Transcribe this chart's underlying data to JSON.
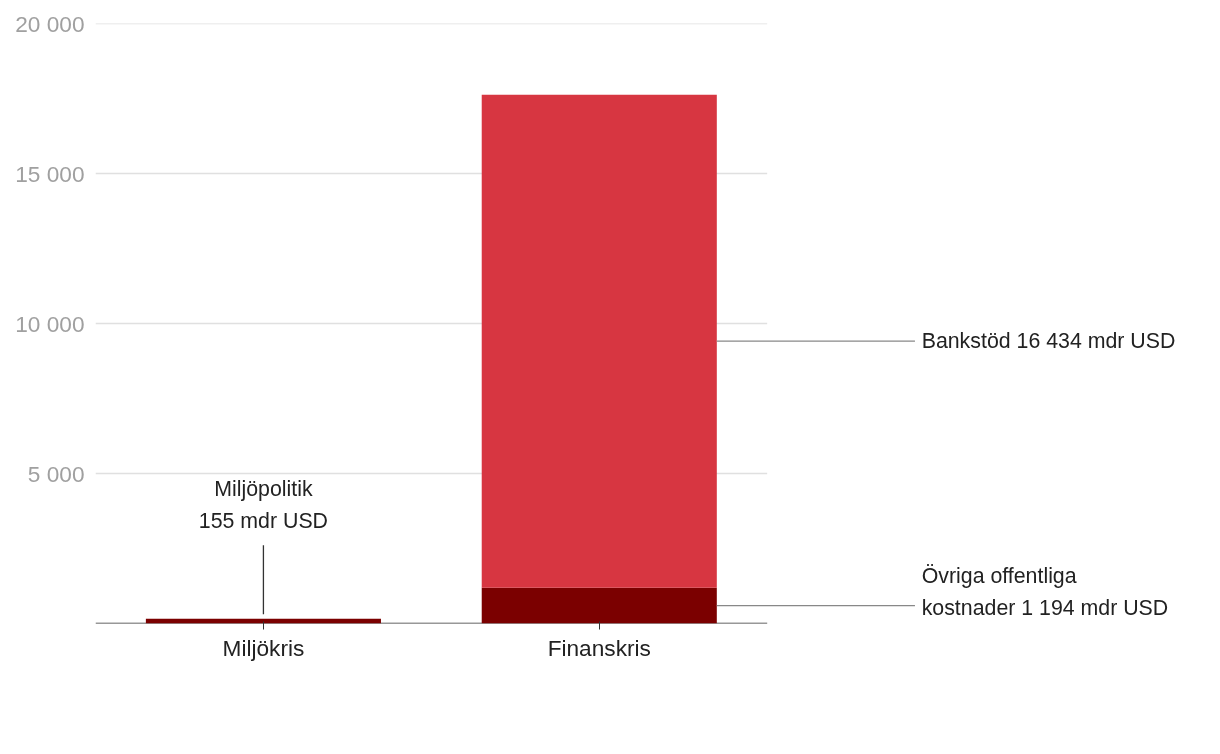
{
  "chart_data": {
    "type": "bar",
    "stacked": true,
    "categories": [
      "Miljökris",
      "Finanskris"
    ],
    "series": [
      {
        "color": "#7b0000",
        "values": [
          155,
          1194
        ],
        "value_labels": [
          "Miljöpolitik\n155 mdr USD",
          "Övriga offentliga\nkostnader 1 194 mdr USD"
        ]
      },
      {
        "color": "#d73641",
        "values": [
          0,
          16434
        ],
        "value_labels": [
          null,
          "Bankstöd 16 434 mdr USD"
        ]
      }
    ],
    "ylim": [
      0,
      20000
    ],
    "yticks": [
      {
        "value": 0,
        "label": null
      },
      {
        "value": 5000,
        "label": "5 000"
      },
      {
        "value": 10000,
        "label": "10 000"
      },
      {
        "value": 15000,
        "label": "15 000"
      },
      {
        "value": 20000,
        "label": "20 000"
      }
    ],
    "grid": "y"
  }
}
